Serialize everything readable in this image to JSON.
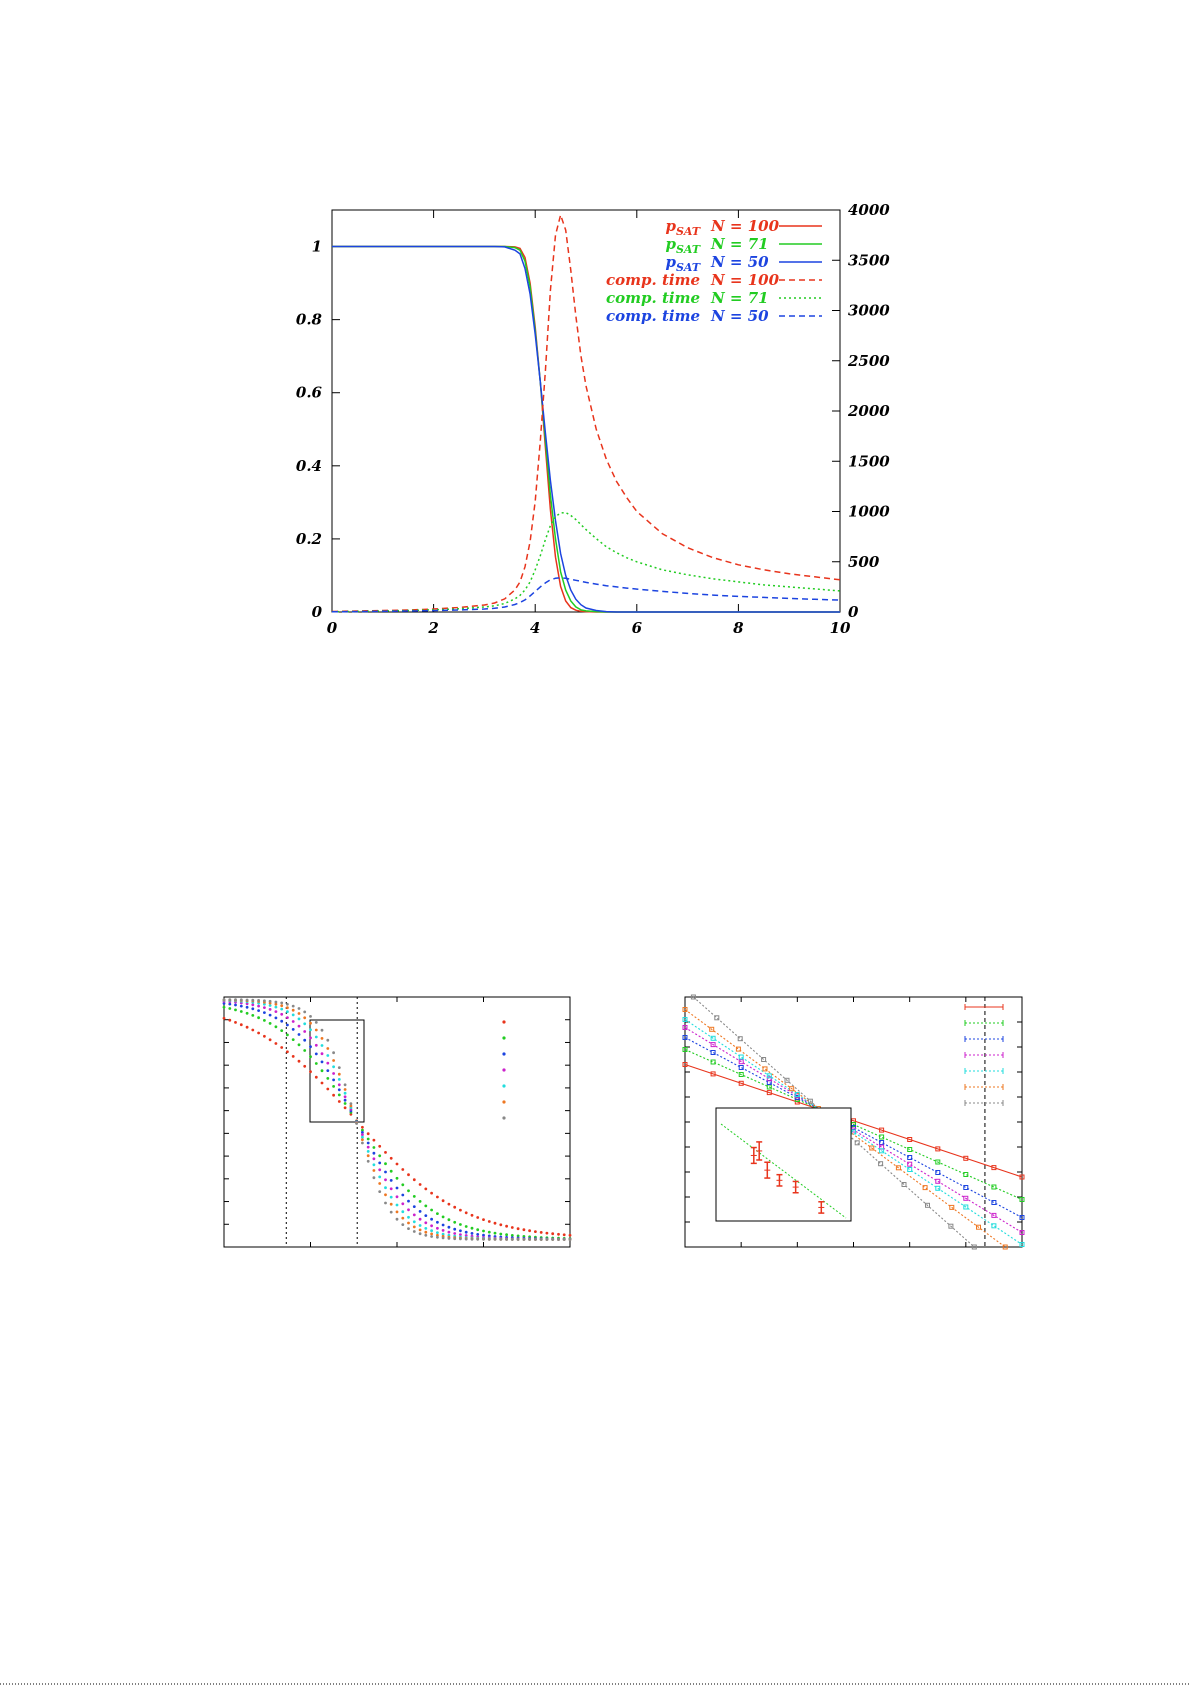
{
  "chart_data": [
    {
      "type": "line",
      "x": [
        0,
        0.5,
        1,
        1.5,
        2,
        2.5,
        3,
        3.2,
        3.4,
        3.6,
        3.7,
        3.8,
        3.9,
        4.0,
        4.1,
        4.2,
        4.3,
        4.4,
        4.5,
        4.6,
        4.7,
        4.8,
        4.9,
        5.0,
        5.2,
        5.4,
        5.6,
        5.8,
        6,
        6.5,
        7,
        7.5,
        8,
        8.5,
        9,
        9.5,
        10
      ],
      "xlim": [
        0,
        10
      ],
      "ylim": [
        0,
        1.1
      ],
      "y2lim": [
        0,
        4000
      ],
      "xticks": [
        "0",
        "2",
        "4",
        "6",
        "8",
        "10"
      ],
      "yticks": [
        "0",
        "0.2",
        "0.4",
        "0.6",
        "0.8",
        "1"
      ],
      "y2ticks": [
        "0",
        "500",
        "1000",
        "1500",
        "2000",
        "2500",
        "3000",
        "3500",
        "4000"
      ],
      "legend_position": "top-right",
      "series": [
        {
          "name_main": "p",
          "name_sub": "SAT",
          "name_n": "N = 100",
          "axis": "left",
          "color": "#e8341c",
          "dash": "solid",
          "values": [
            1,
            1,
            1,
            1,
            1,
            1,
            1,
            1,
            1,
            0.999,
            0.995,
            0.97,
            0.9,
            0.78,
            0.63,
            0.45,
            0.28,
            0.15,
            0.07,
            0.03,
            0.012,
            0.005,
            0.002,
            0.001,
            0,
            0,
            0,
            0,
            0,
            0,
            0,
            0,
            0,
            0,
            0,
            0,
            0
          ]
        },
        {
          "name_main": "p",
          "name_sub": "SAT",
          "name_n": "N =  71",
          "axis": "left",
          "color": "#22cc22",
          "dash": "solid",
          "values": [
            1,
            1,
            1,
            1,
            1,
            1,
            1,
            1,
            1,
            0.997,
            0.99,
            0.96,
            0.89,
            0.77,
            0.63,
            0.47,
            0.32,
            0.2,
            0.11,
            0.06,
            0.03,
            0.014,
            0.006,
            0.003,
            0.001,
            0,
            0,
            0,
            0,
            0,
            0,
            0,
            0,
            0,
            0,
            0,
            0
          ]
        },
        {
          "name_main": "p",
          "name_sub": "SAT",
          "name_n": "N =  50",
          "axis": "left",
          "color": "#1c44e0",
          "dash": "solid",
          "values": [
            1,
            1,
            1,
            1,
            1,
            1,
            1,
            1,
            0.999,
            0.99,
            0.98,
            0.94,
            0.87,
            0.76,
            0.63,
            0.49,
            0.36,
            0.25,
            0.16,
            0.1,
            0.06,
            0.035,
            0.02,
            0.011,
            0.004,
            0.001,
            0,
            0,
            0,
            0,
            0,
            0,
            0,
            0,
            0,
            0,
            0
          ]
        },
        {
          "name_main": "comp. time",
          "name_n": "N = 100",
          "axis": "right",
          "color": "#e8341c",
          "dash": "6,4",
          "values": [
            5,
            10,
            15,
            20,
            30,
            45,
            70,
            90,
            130,
            220,
            300,
            450,
            700,
            1100,
            1700,
            2400,
            3200,
            3750,
            3950,
            3800,
            3400,
            2950,
            2550,
            2250,
            1820,
            1520,
            1300,
            1140,
            1000,
            780,
            640,
            540,
            470,
            420,
            380,
            350,
            320
          ]
        },
        {
          "name_main": "comp. time",
          "name_n": "N =  71",
          "axis": "right",
          "color": "#22cc22",
          "dash": "2,3",
          "values": [
            3,
            6,
            10,
            15,
            22,
            32,
            50,
            62,
            85,
            130,
            165,
            220,
            300,
            420,
            560,
            720,
            860,
            950,
            985,
            990,
            960,
            920,
            870,
            820,
            730,
            650,
            590,
            540,
            500,
            420,
            370,
            330,
            300,
            270,
            250,
            230,
            210
          ]
        },
        {
          "name_main": "comp. time",
          "name_n": "N =  50",
          "axis": "right",
          "color": "#1c44e0",
          "dash": "6,4",
          "values": [
            2,
            4,
            7,
            10,
            14,
            20,
            30,
            37,
            50,
            75,
            95,
            120,
            160,
            205,
            250,
            290,
            320,
            335,
            340,
            335,
            325,
            315,
            305,
            295,
            278,
            262,
            250,
            238,
            228,
            205,
            185,
            168,
            155,
            145,
            135,
            126,
            118
          ]
        }
      ]
    },
    {
      "type": "scatter",
      "xlim": [
        0,
        1
      ],
      "ylim": [
        0,
        1
      ],
      "colors": [
        "#e8341c",
        "#22cc22",
        "#1c44e0",
        "#cc22cc",
        "#22dddd",
        "#ee7722",
        "#888888"
      ],
      "widths": [
        0.55,
        0.4,
        0.33,
        0.28,
        0.24,
        0.21,
        0.18
      ],
      "center": 0.38,
      "vlines": [
        0.18,
        0.385
      ],
      "legend_position": "top-right"
    },
    {
      "type": "line",
      "xlim": [
        0,
        1
      ],
      "ylim": [
        0,
        1
      ],
      "colors": [
        "#e8341c",
        "#22cc22",
        "#1c44e0",
        "#cc22cc",
        "#22dddd",
        "#ee7722",
        "#888888"
      ],
      "slopes": [
        -0.45,
        -0.6,
        -0.72,
        -0.82,
        -0.9,
        -1.0,
        -1.2
      ],
      "cross": [
        0.4,
        0.55
      ],
      "vline": 0.89,
      "legend_position": "top-right"
    }
  ]
}
